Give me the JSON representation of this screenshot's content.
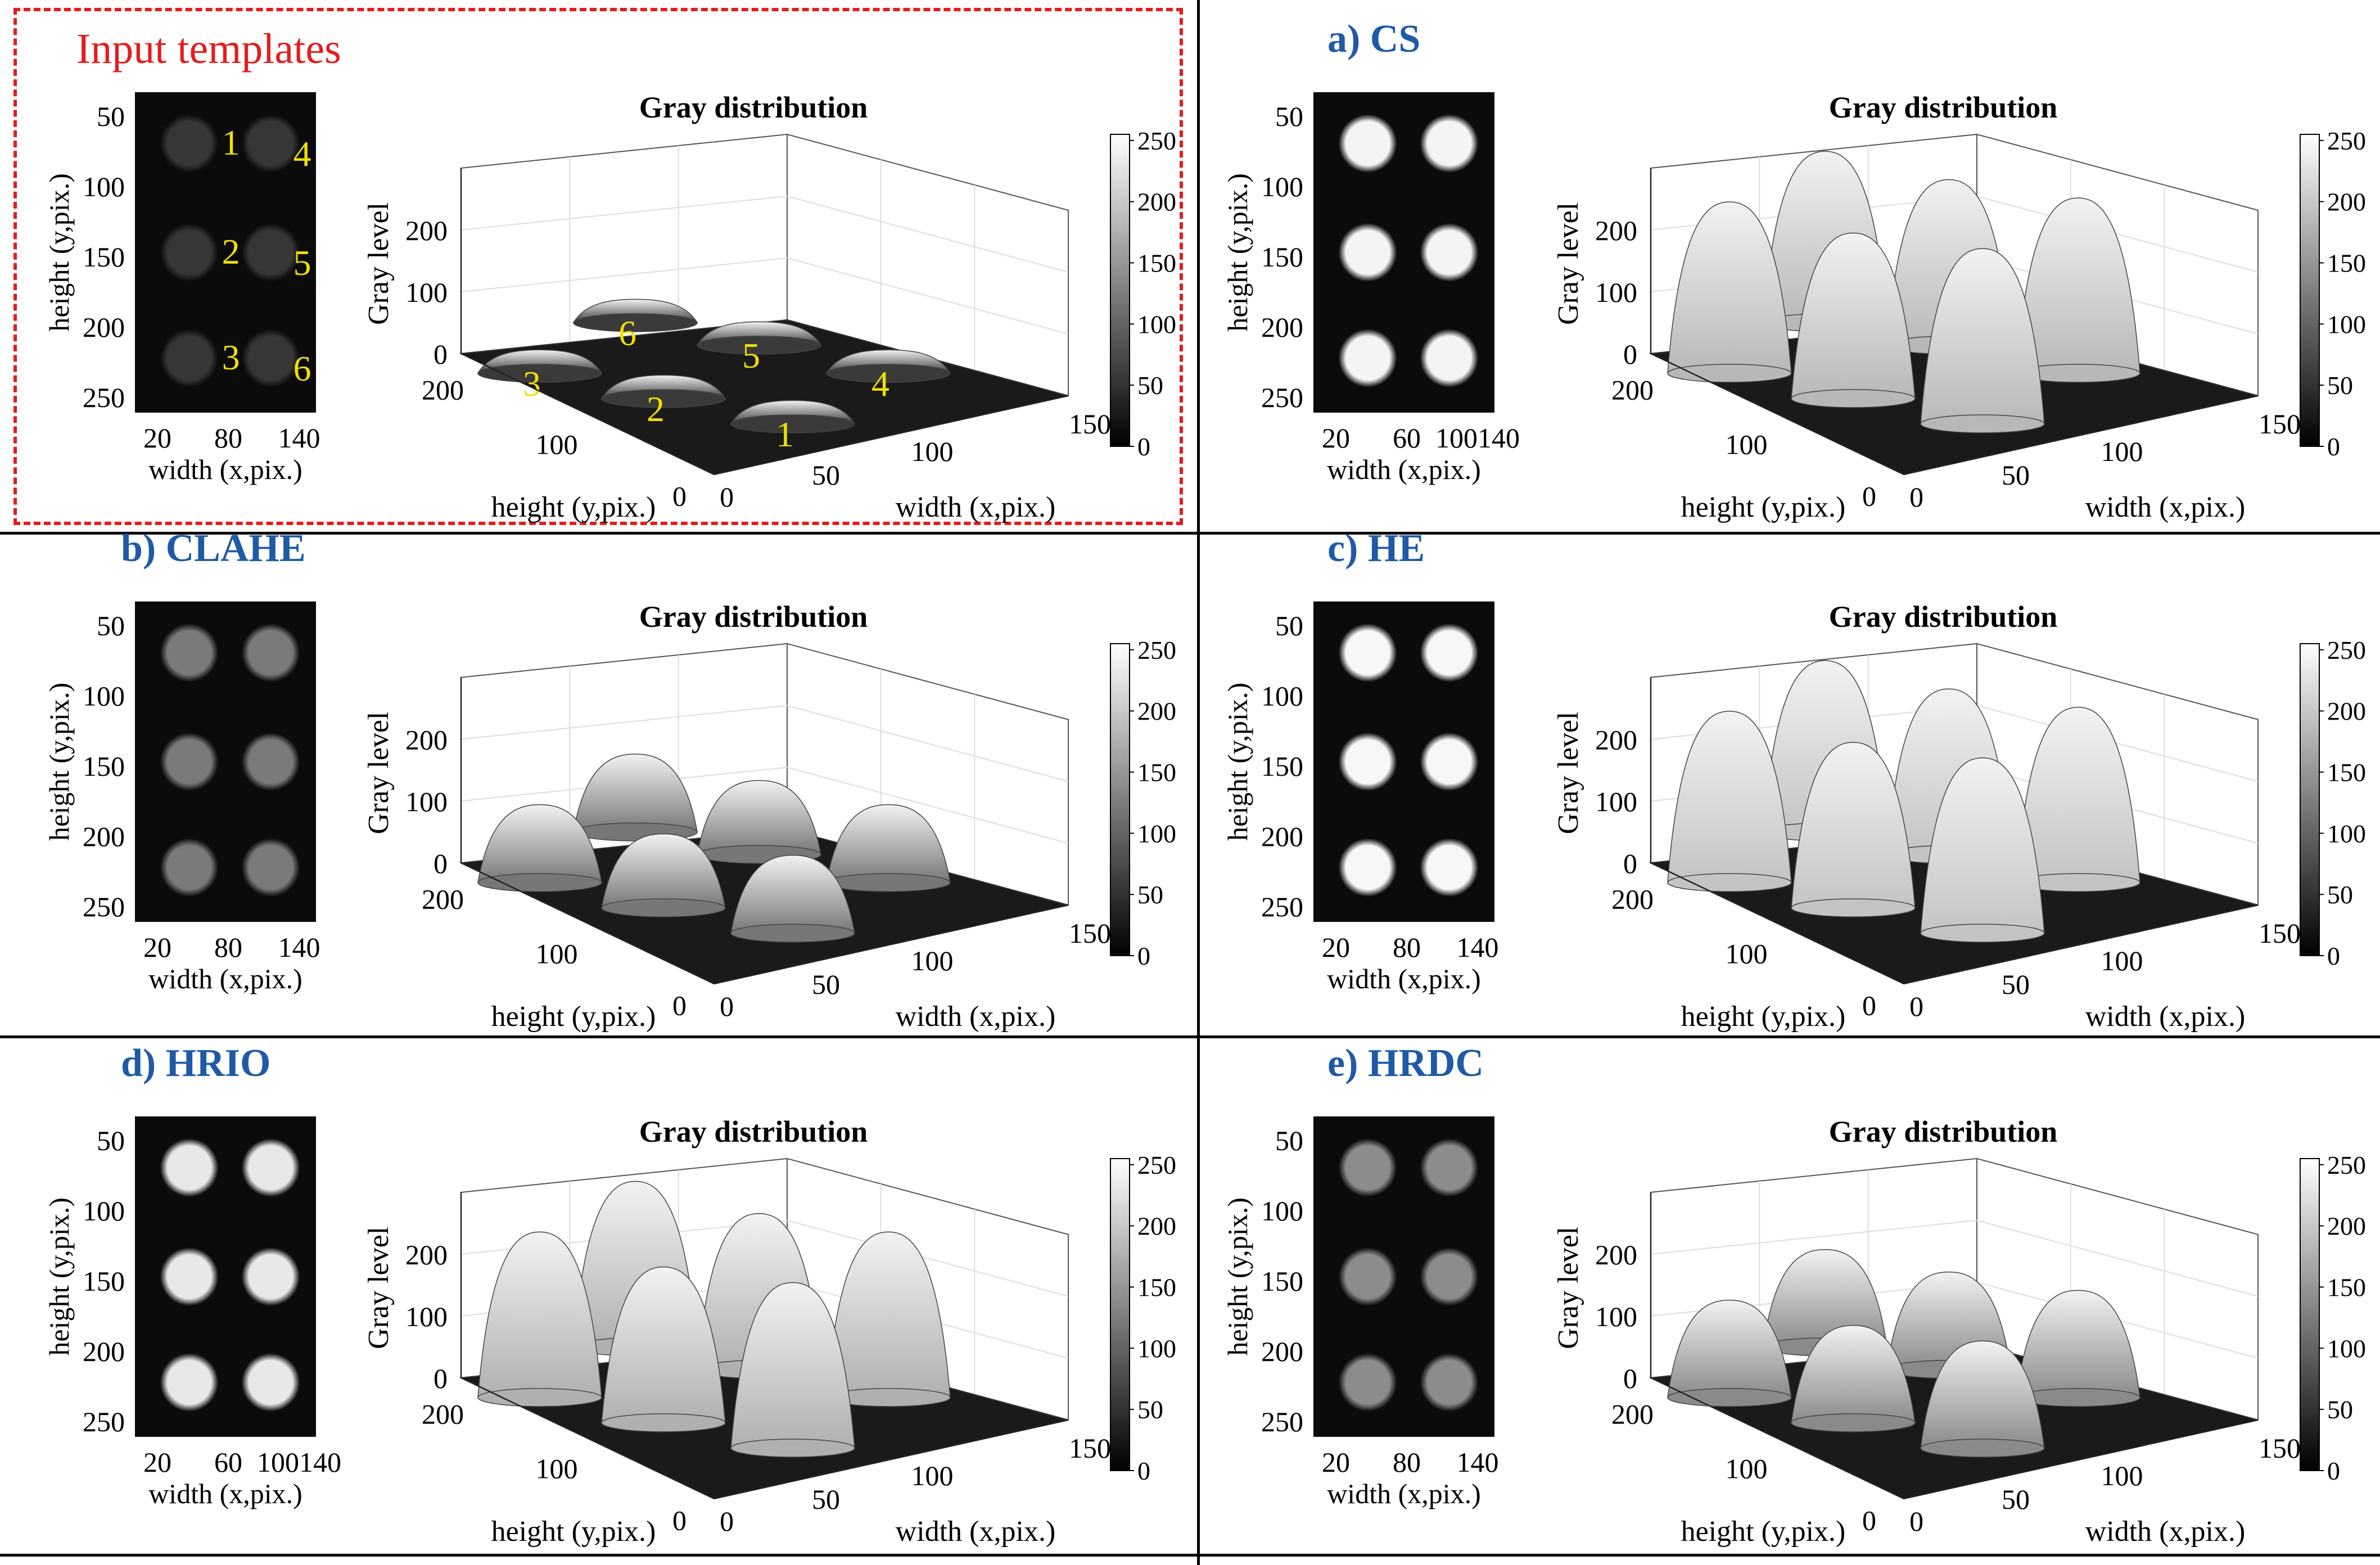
{
  "figure": {
    "input_templates_title": "Input templates",
    "shared": {
      "gray_title": "Gray distribution",
      "gray_level_label": "Gray level",
      "height_label": "height (y,pix.)",
      "width_label": "width (x,pix.)",
      "z_ticks": [
        "0",
        "100",
        "200"
      ],
      "y_ticks_3d": [
        "200",
        "100",
        "0"
      ],
      "x_ticks_3d": [
        "0",
        "50",
        "100",
        "150"
      ],
      "colorbar_ticks": [
        "0",
        "50",
        "100",
        "150",
        "200",
        "250"
      ],
      "thumb_y_ticks": [
        "50",
        "100",
        "150",
        "200",
        "250"
      ]
    },
    "template_numbers": [
      "1",
      "2",
      "3",
      "4",
      "5",
      "6"
    ],
    "panels": [
      {
        "id": "input",
        "title": "",
        "thumb_x_ticks": [
          "20",
          "80",
          "140"
        ],
        "spot_gray": "#363636",
        "peak_heights": [
          0.12,
          0.12,
          0.12,
          0.12,
          0.12,
          0.12
        ],
        "surface_gray": "#3a3a3a"
      },
      {
        "id": "cs",
        "title": "a) CS",
        "thumb_x_ticks": [
          "20",
          "60",
          "100140"
        ],
        "spot_gray": "#f4f4f4",
        "peak_heights": [
          0.9,
          0.85,
          0.88,
          0.9,
          0.85,
          0.88
        ],
        "surface_gray": "#b8b8b8"
      },
      {
        "id": "clahe",
        "title": "b) CLAHE",
        "thumb_x_ticks": [
          "20",
          "80",
          "140"
        ],
        "spot_gray": "#7a7a7a",
        "peak_heights": [
          0.4,
          0.38,
          0.4,
          0.4,
          0.38,
          0.4
        ],
        "surface_gray": "#777777"
      },
      {
        "id": "he",
        "title": "c) HE",
        "thumb_x_ticks": [
          "20",
          "80",
          "140"
        ],
        "spot_gray": "#f7f7f7",
        "peak_heights": [
          0.9,
          0.85,
          0.88,
          0.9,
          0.85,
          0.88
        ],
        "surface_gray": "#c4c4c4"
      },
      {
        "id": "hrio",
        "title": "d) HRIO",
        "thumb_x_ticks": [
          "20",
          "60",
          "100140"
        ],
        "spot_gray": "#e8e8e8",
        "peak_heights": [
          0.85,
          0.8,
          0.85,
          0.85,
          0.8,
          0.85
        ],
        "surface_gray": "#b0b0b0"
      },
      {
        "id": "hrdc",
        "title": "e) HRDC",
        "thumb_x_ticks": [
          "20",
          "80",
          "140"
        ],
        "spot_gray": "#8c8c8c",
        "peak_heights": [
          0.55,
          0.5,
          0.5,
          0.55,
          0.5,
          0.5
        ],
        "surface_gray": "#8a8a8a"
      }
    ],
    "colors": {
      "panel_title": "#1f5aa6",
      "input_title": "#e51c1c",
      "template_number": "#f0e000",
      "dashed_border": "#e51c1c"
    }
  }
}
